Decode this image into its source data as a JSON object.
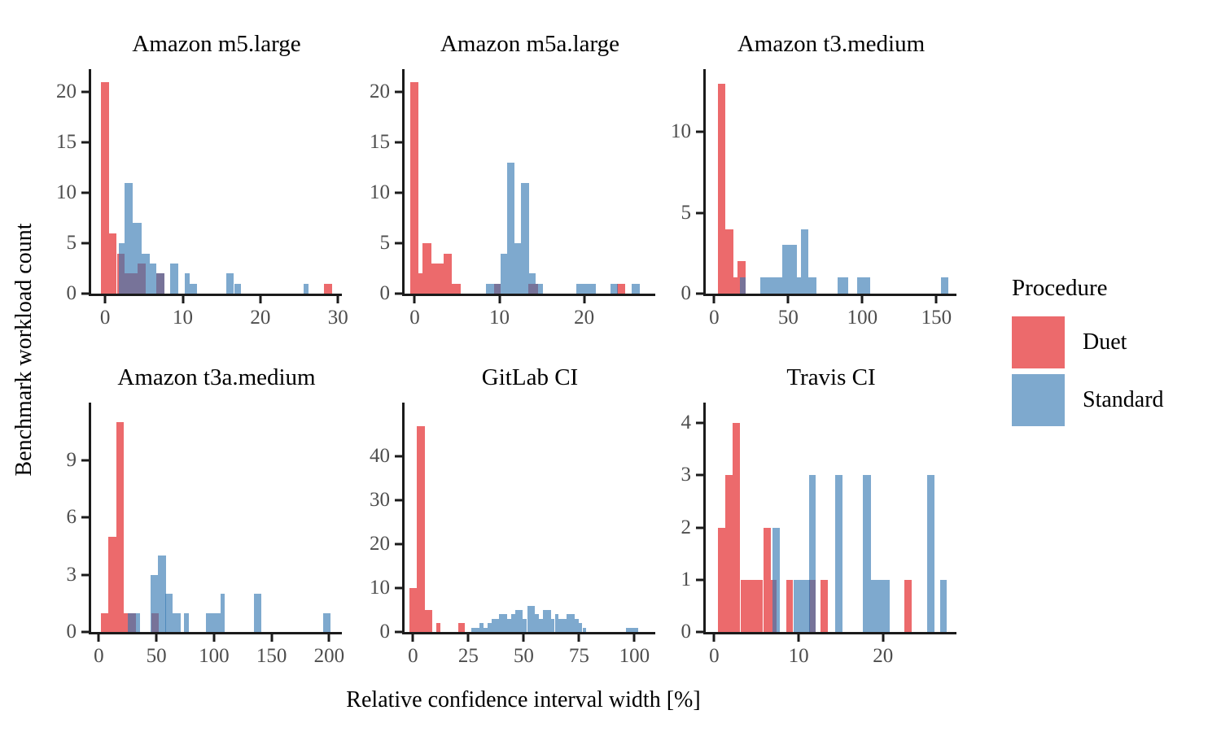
{
  "figure": {
    "y_axis_label": "Benchmark workload count",
    "x_axis_label": "Relative confidence interval width [%]"
  },
  "legend": {
    "title": "Procedure",
    "items": [
      {
        "label": "Duet",
        "color": "#EC6A6C"
      },
      {
        "label": "Standard",
        "color": "#7EA9CE"
      }
    ]
  },
  "colors": {
    "duet": "#EC6A6C",
    "standard": "#7EA9CE",
    "overlap": "#74739C",
    "axis": "#1b1b1b",
    "tick_label": "#4d4d4d"
  },
  "chart_data": [
    {
      "type": "bar",
      "title": "Amazon m5.large",
      "xlim": [
        -1.8,
        30.5
      ],
      "ylim": [
        0,
        22.3
      ],
      "xticks": [
        0,
        10,
        20,
        30
      ],
      "yticks": [
        0,
        5,
        10,
        15,
        20
      ],
      "grid": false,
      "series": [
        {
          "name": "Duet",
          "bars": [
            [
              -0.5,
              1,
              21
            ],
            [
              0.5,
              1,
              6
            ],
            [
              1.5,
              1,
              4
            ],
            [
              2.5,
              1.7,
              2
            ],
            [
              4.2,
              1,
              3
            ],
            [
              6.6,
              1,
              2
            ],
            [
              28.2,
              1,
              1
            ]
          ]
        },
        {
          "name": "Standard",
          "bars": [
            [
              1.8,
              0.7,
              5
            ],
            [
              2.5,
              1,
              11
            ],
            [
              3.5,
              1.2,
              7
            ],
            [
              4.7,
              1,
              4
            ],
            [
              5.7,
              0.9,
              3
            ],
            [
              6.6,
              1,
              2
            ],
            [
              8.4,
              1,
              3
            ],
            [
              10.3,
              0.6,
              2
            ],
            [
              10.9,
              0.9,
              1
            ],
            [
              15.6,
              1,
              2
            ],
            [
              16.6,
              0.9,
              1
            ],
            [
              25.6,
              0.6,
              1
            ]
          ]
        }
      ]
    },
    {
      "type": "bar",
      "title": "Amazon m5a.large",
      "xlim": [
        -1.2,
        28.4
      ],
      "ylim": [
        0,
        22.3
      ],
      "xticks": [
        0,
        10,
        20
      ],
      "yticks": [
        0,
        5,
        10,
        15,
        20
      ],
      "grid": false,
      "series": [
        {
          "name": "Duet",
          "bars": [
            [
              -0.5,
              0.95,
              21
            ],
            [
              0.45,
              0.5,
              2
            ],
            [
              0.95,
              1,
              5
            ],
            [
              1.95,
              1.45,
              3
            ],
            [
              3.4,
              1,
              4
            ],
            [
              4.4,
              1,
              1
            ],
            [
              9.4,
              0.7,
              1
            ],
            [
              13.4,
              1.2,
              1
            ],
            [
              23.9,
              0.9,
              1
            ]
          ]
        },
        {
          "name": "Standard",
          "bars": [
            [
              8.4,
              1,
              1
            ],
            [
              9.4,
              0.7,
              1
            ],
            [
              10.1,
              0.8,
              4
            ],
            [
              10.9,
              0.9,
              13
            ],
            [
              11.8,
              0.7,
              5
            ],
            [
              12.5,
              1,
              11
            ],
            [
              13.5,
              0.8,
              2
            ],
            [
              14.3,
              0.8,
              1
            ],
            [
              19.1,
              2.3,
              1
            ],
            [
              23.1,
              0.9,
              1
            ],
            [
              25.6,
              1,
              1
            ]
          ]
        }
      ]
    },
    {
      "type": "bar",
      "title": "Amazon t3.medium",
      "xlim": [
        -5.7,
        163.5
      ],
      "ylim": [
        0,
        13.9
      ],
      "xticks": [
        0,
        50,
        100,
        150
      ],
      "yticks": [
        0,
        5,
        10
      ],
      "grid": false,
      "series": [
        {
          "name": "Duet",
          "bars": [
            [
              2.4,
              5.3,
              13
            ],
            [
              7.7,
              5.3,
              4
            ],
            [
              13,
              2.8,
              1
            ],
            [
              15.8,
              5.3,
              2
            ]
          ]
        },
        {
          "name": "Standard",
          "bars": [
            [
              17.5,
              3.5,
              1
            ],
            [
              31,
              14.7,
              1
            ],
            [
              45.7,
              10.3,
              3
            ],
            [
              56,
              2.5,
              1
            ],
            [
              58.5,
              5.2,
              4
            ],
            [
              63.7,
              5.2,
              1
            ],
            [
              83.4,
              7.2,
              1
            ],
            [
              96.7,
              8.8,
              1
            ],
            [
              153,
              5,
              1
            ]
          ]
        }
      ]
    },
    {
      "type": "bar",
      "title": "Amazon t3a.medium",
      "xlim": [
        -6.6,
        211
      ],
      "ylim": [
        0,
        12
      ],
      "xticks": [
        0,
        50,
        100,
        150,
        200
      ],
      "yticks": [
        0,
        3,
        6,
        9
      ],
      "grid": false,
      "series": [
        {
          "name": "Duet",
          "bars": [
            [
              2,
              6.5,
              1
            ],
            [
              8.5,
              6.5,
              5
            ],
            [
              15,
              6.5,
              11
            ],
            [
              21.5,
              3.9,
              1
            ],
            [
              25.4,
              6.6,
              1
            ],
            [
              45.6,
              6.6,
              1
            ]
          ]
        },
        {
          "name": "Standard",
          "bars": [
            [
              25.4,
              6.6,
              1
            ],
            [
              32,
              4,
              1
            ],
            [
              45,
              6.3,
              3
            ],
            [
              51.3,
              6.7,
              4
            ],
            [
              58,
              6.3,
              2
            ],
            [
              64.3,
              6.5,
              1
            ],
            [
              74,
              4,
              1
            ],
            [
              92.7,
              13.2,
              1
            ],
            [
              105.9,
              3.7,
              2
            ],
            [
              134.4,
              6.6,
              2
            ],
            [
              194.4,
              7,
              1
            ]
          ]
        }
      ]
    },
    {
      "type": "bar",
      "title": "GitLab CI",
      "xlim": [
        -3.8,
        109.4
      ],
      "ylim": [
        0,
        52.3
      ],
      "xticks": [
        0,
        25,
        50,
        75,
        100
      ],
      "yticks": [
        0,
        10,
        20,
        30,
        40
      ],
      "grid": false,
      "series": [
        {
          "name": "Duet",
          "bars": [
            [
              -1.7,
              3.4,
              10
            ],
            [
              1.7,
              3.5,
              47
            ],
            [
              5.2,
              3.5,
              5
            ],
            [
              10.5,
              1.8,
              2
            ],
            [
              20.6,
              2.8,
              2
            ]
          ]
        },
        {
          "name": "Standard",
          "bars": [
            [
              26.5,
              3.4,
              1
            ],
            [
              29.9,
              1.9,
              2
            ],
            [
              31.8,
              1.8,
              1
            ],
            [
              33.6,
              1.8,
              2
            ],
            [
              35.4,
              3.5,
              3
            ],
            [
              38.9,
              3.6,
              4
            ],
            [
              42.5,
              1.8,
              3
            ],
            [
              44.3,
              1.8,
              4
            ],
            [
              46.1,
              3.5,
              5
            ],
            [
              49.6,
              1.9,
              3
            ],
            [
              51.5,
              3.5,
              6
            ],
            [
              55,
              1.8,
              4
            ],
            [
              56.8,
              1.8,
              3
            ],
            [
              58.6,
              3.6,
              5
            ],
            [
              62.2,
              1.8,
              3
            ],
            [
              64,
              1.8,
              4
            ],
            [
              65.8,
              3.6,
              3
            ],
            [
              69.4,
              3.5,
              4
            ],
            [
              72.9,
              1.8,
              3
            ],
            [
              74.7,
              1.8,
              2
            ],
            [
              76.5,
              1.8,
              1
            ],
            [
              96,
              5.5,
              1
            ]
          ]
        }
      ]
    },
    {
      "type": "bar",
      "title": "Travis CI",
      "xlim": [
        -1,
        28.7
      ],
      "ylim": [
        0,
        4.39
      ],
      "xticks": [
        0,
        10,
        20
      ],
      "yticks": [
        0,
        1,
        2,
        3,
        4
      ],
      "grid": false,
      "series": [
        {
          "name": "Duet",
          "bars": [
            [
              0.4,
              0.9,
              2
            ],
            [
              1.3,
              0.9,
              3
            ],
            [
              2.2,
              0.9,
              4
            ],
            [
              3.1,
              0.9,
              1
            ],
            [
              4,
              0.9,
              1
            ],
            [
              4.9,
              0.9,
              1
            ],
            [
              5.8,
              0.9,
              2
            ],
            [
              6.7,
              0.7,
              1
            ],
            [
              8.5,
              0.8,
              1
            ],
            [
              11.2,
              0.8,
              1
            ],
            [
              12.6,
              0.9,
              1
            ],
            [
              22.5,
              0.9,
              1
            ]
          ]
        },
        {
          "name": "Standard",
          "bars": [
            [
              6.9,
              0.9,
              2
            ],
            [
              9.4,
              1.9,
              1
            ],
            [
              11.2,
              0.8,
              3
            ],
            [
              14.3,
              0.9,
              3
            ],
            [
              17.6,
              1,
              3
            ],
            [
              18.6,
              2.2,
              1
            ],
            [
              25.2,
              0.9,
              3
            ],
            [
              26.8,
              0.7,
              1
            ]
          ]
        }
      ]
    }
  ]
}
